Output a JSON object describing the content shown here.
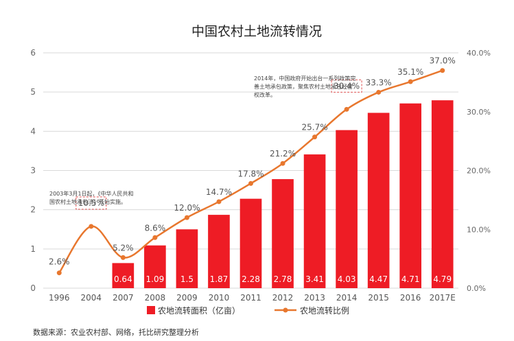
{
  "chart_data": {
    "type": "bar+line",
    "title": "中国农村土地流转情况",
    "categories": [
      "1996",
      "2004",
      "2007",
      "2008",
      "2009",
      "2010",
      "2011",
      "2012",
      "2013",
      "2014",
      "2015",
      "2016",
      "2017E"
    ],
    "series": [
      {
        "name": "农地流转面积（亿亩）",
        "type": "bar",
        "axis": "left",
        "color": "#ee1c25",
        "values": [
          null,
          null,
          0.64,
          1.09,
          1.5,
          1.87,
          2.28,
          2.78,
          3.41,
          4.03,
          4.47,
          4.71,
          4.79
        ],
        "labels": [
          "",
          "",
          "0.64",
          "1.09",
          "1.5",
          "1.87",
          "2.28",
          "2.78",
          "3.41",
          "4.03",
          "4.47",
          "4.71",
          "4.79"
        ]
      },
      {
        "name": "农地流转比例",
        "type": "line",
        "axis": "right",
        "color": "#e8772e",
        "values": [
          2.6,
          10.5,
          5.2,
          8.6,
          12.0,
          14.7,
          17.8,
          21.2,
          25.7,
          30.4,
          33.3,
          35.1,
          37.0
        ],
        "labels": [
          "2.6%",
          "10.5%",
          "5.2%",
          "8.6%",
          "12.0%",
          "14.7%",
          "17.8%",
          "21.2%",
          "25.7%",
          "30.4%",
          "33.3%",
          "35.1%",
          "37.0%"
        ]
      }
    ],
    "y_left": {
      "min": 0,
      "max": 6,
      "ticks": [
        "0",
        "1",
        "2",
        "3",
        "4",
        "5",
        "6"
      ]
    },
    "y_right": {
      "min": 0,
      "max": 40,
      "ticks": [
        "0.0%",
        "10.0%",
        "20.0%",
        "30.0%",
        "40.0%"
      ]
    },
    "grid": true,
    "legend_position": "bottom",
    "annotations": [
      {
        "category": "2004",
        "lines": [
          "2003年3月1日起，《中华人民共和",
          "国农村土地承包法》开始实施。"
        ]
      },
      {
        "category": "2014",
        "lines": [
          "2014年，中国政府开始出台一系列政策完",
          "善土地承包政策，聚焦农村土地承包经营",
          "权改革。"
        ]
      }
    ],
    "boxed_labels": [
      "2004",
      "2014"
    ]
  },
  "source_text": "数据来源：农业农村部、网络，托比研究整理分析"
}
